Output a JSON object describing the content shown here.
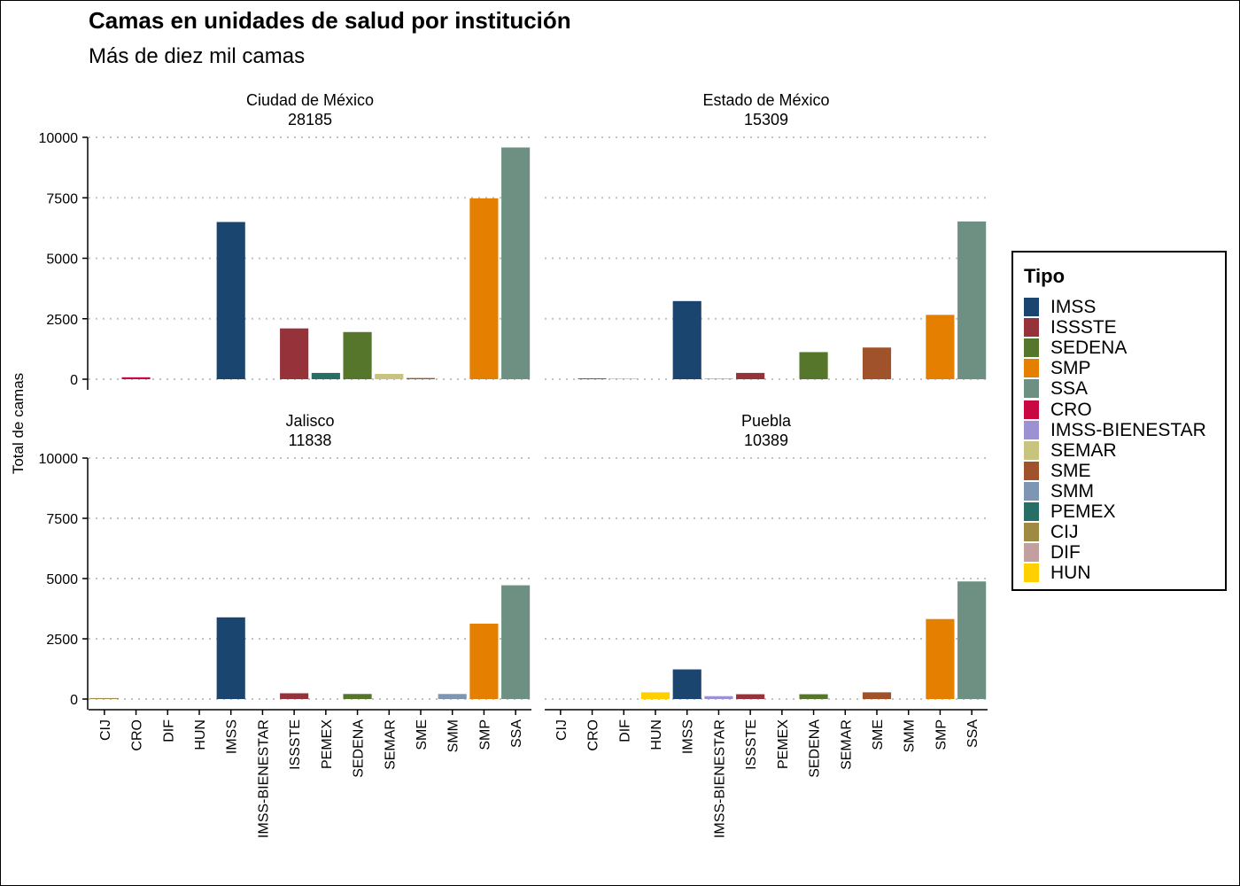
{
  "title": "Camas en unidades de salud por institución",
  "subtitle": "Más de diez mil camas",
  "chart_data": {
    "type": "bar",
    "ylabel": "Total de camas",
    "xlabel": "",
    "ylim": [
      0,
      10000
    ],
    "yticks": [
      0,
      2500,
      5000,
      7500,
      10000
    ],
    "grid": "horizontal dotted",
    "legend": {
      "title": "Tipo",
      "placement": "right"
    },
    "categories": [
      "CIJ",
      "CRO",
      "DIF",
      "HUN",
      "IMSS",
      "IMSS-BIENESTAR",
      "ISSSTE",
      "PEMEX",
      "SEDENA",
      "SEMAR",
      "SME",
      "SMM",
      "SMP",
      "SSA"
    ],
    "colors": {
      "IMSS": "#1a456e",
      "ISSSTE": "#95323a",
      "SEDENA": "#56762c",
      "SMP": "#e57f00",
      "SSA": "#6e9082",
      "CRO": "#c80843",
      "IMSS-BIENESTAR": "#9c92d3",
      "SEMAR": "#c8c47f",
      "SME": "#a0532b",
      "SMM": "#7f96b2",
      "PEMEX": "#276e66",
      "CIJ": "#9e8a42",
      "DIF": "#c1a09f",
      "HUN": "#ffd000"
    },
    "legend_order": [
      "IMSS",
      "ISSSTE",
      "SEDENA",
      "SMP",
      "SSA",
      "CRO",
      "IMSS-BIENESTAR",
      "SEMAR",
      "SME",
      "SMM",
      "PEMEX",
      "CIJ",
      "DIF",
      "HUN"
    ],
    "panels": [
      {
        "name": "Ciudad de México",
        "total": "28185",
        "values": [
          0,
          80,
          0,
          0,
          6500,
          0,
          2100,
          260,
          1950,
          220,
          50,
          0,
          7480,
          9580
        ]
      },
      {
        "name": "Estado de México",
        "total": "15309",
        "values": [
          0,
          30,
          20,
          0,
          3230,
          25,
          260,
          0,
          1120,
          0,
          1310,
          0,
          2660,
          6520
        ]
      },
      {
        "name": "Jalisco",
        "total": "11838",
        "values": [
          40,
          0,
          0,
          0,
          3390,
          0,
          240,
          0,
          210,
          0,
          0,
          210,
          3130,
          4720
        ]
      },
      {
        "name": "Puebla",
        "total": "10389",
        "values": [
          0,
          0,
          0,
          280,
          1230,
          120,
          200,
          0,
          200,
          0,
          280,
          0,
          3320,
          4880
        ]
      }
    ]
  }
}
